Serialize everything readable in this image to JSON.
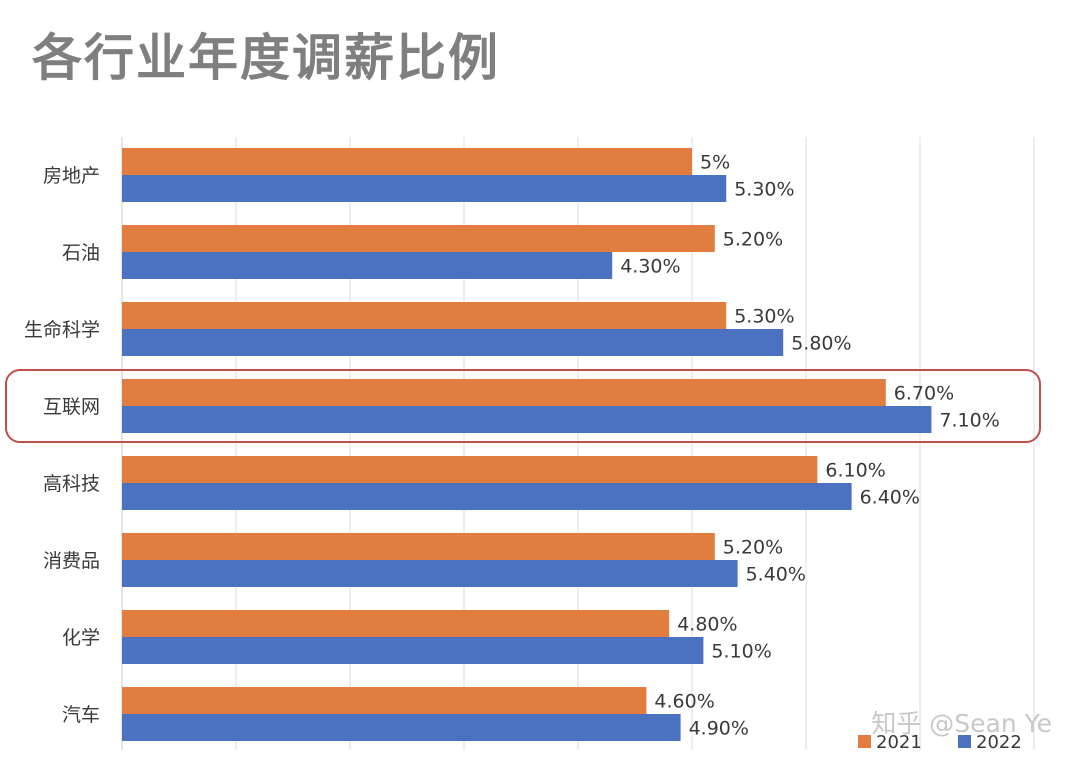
{
  "chart_data": {
    "type": "bar",
    "orientation": "horizontal",
    "title": "各行业年度调薪比例",
    "categories": [
      "房地产",
      "石油",
      "生命科学",
      "互联网",
      "高科技",
      "消费品",
      "化学",
      "汽车"
    ],
    "series": [
      {
        "name": "2021",
        "color": "#e07d3f",
        "values": [
          5.0,
          5.2,
          5.3,
          6.7,
          6.1,
          5.2,
          4.8,
          4.6
        ],
        "labels": [
          "5%",
          "5.20%",
          "5.30%",
          "6.70%",
          "6.10%",
          "5.20%",
          "4.80%",
          "4.60%"
        ]
      },
      {
        "name": "2022",
        "color": "#4a72c0",
        "values": [
          5.3,
          4.3,
          5.8,
          7.1,
          6.4,
          5.4,
          5.1,
          4.9
        ],
        "labels": [
          "5.30%",
          "4.30%",
          "5.80%",
          "7.10%",
          "6.40%",
          "5.40%",
          "5.10%",
          "4.90%"
        ]
      }
    ],
    "xlim": [
      0,
      8
    ],
    "grid": true,
    "highlighted_category": "互联网",
    "highlight_color": "#c0504d",
    "legend_position": "bottom-right"
  },
  "watermark": "知乎 @Sean Ye"
}
